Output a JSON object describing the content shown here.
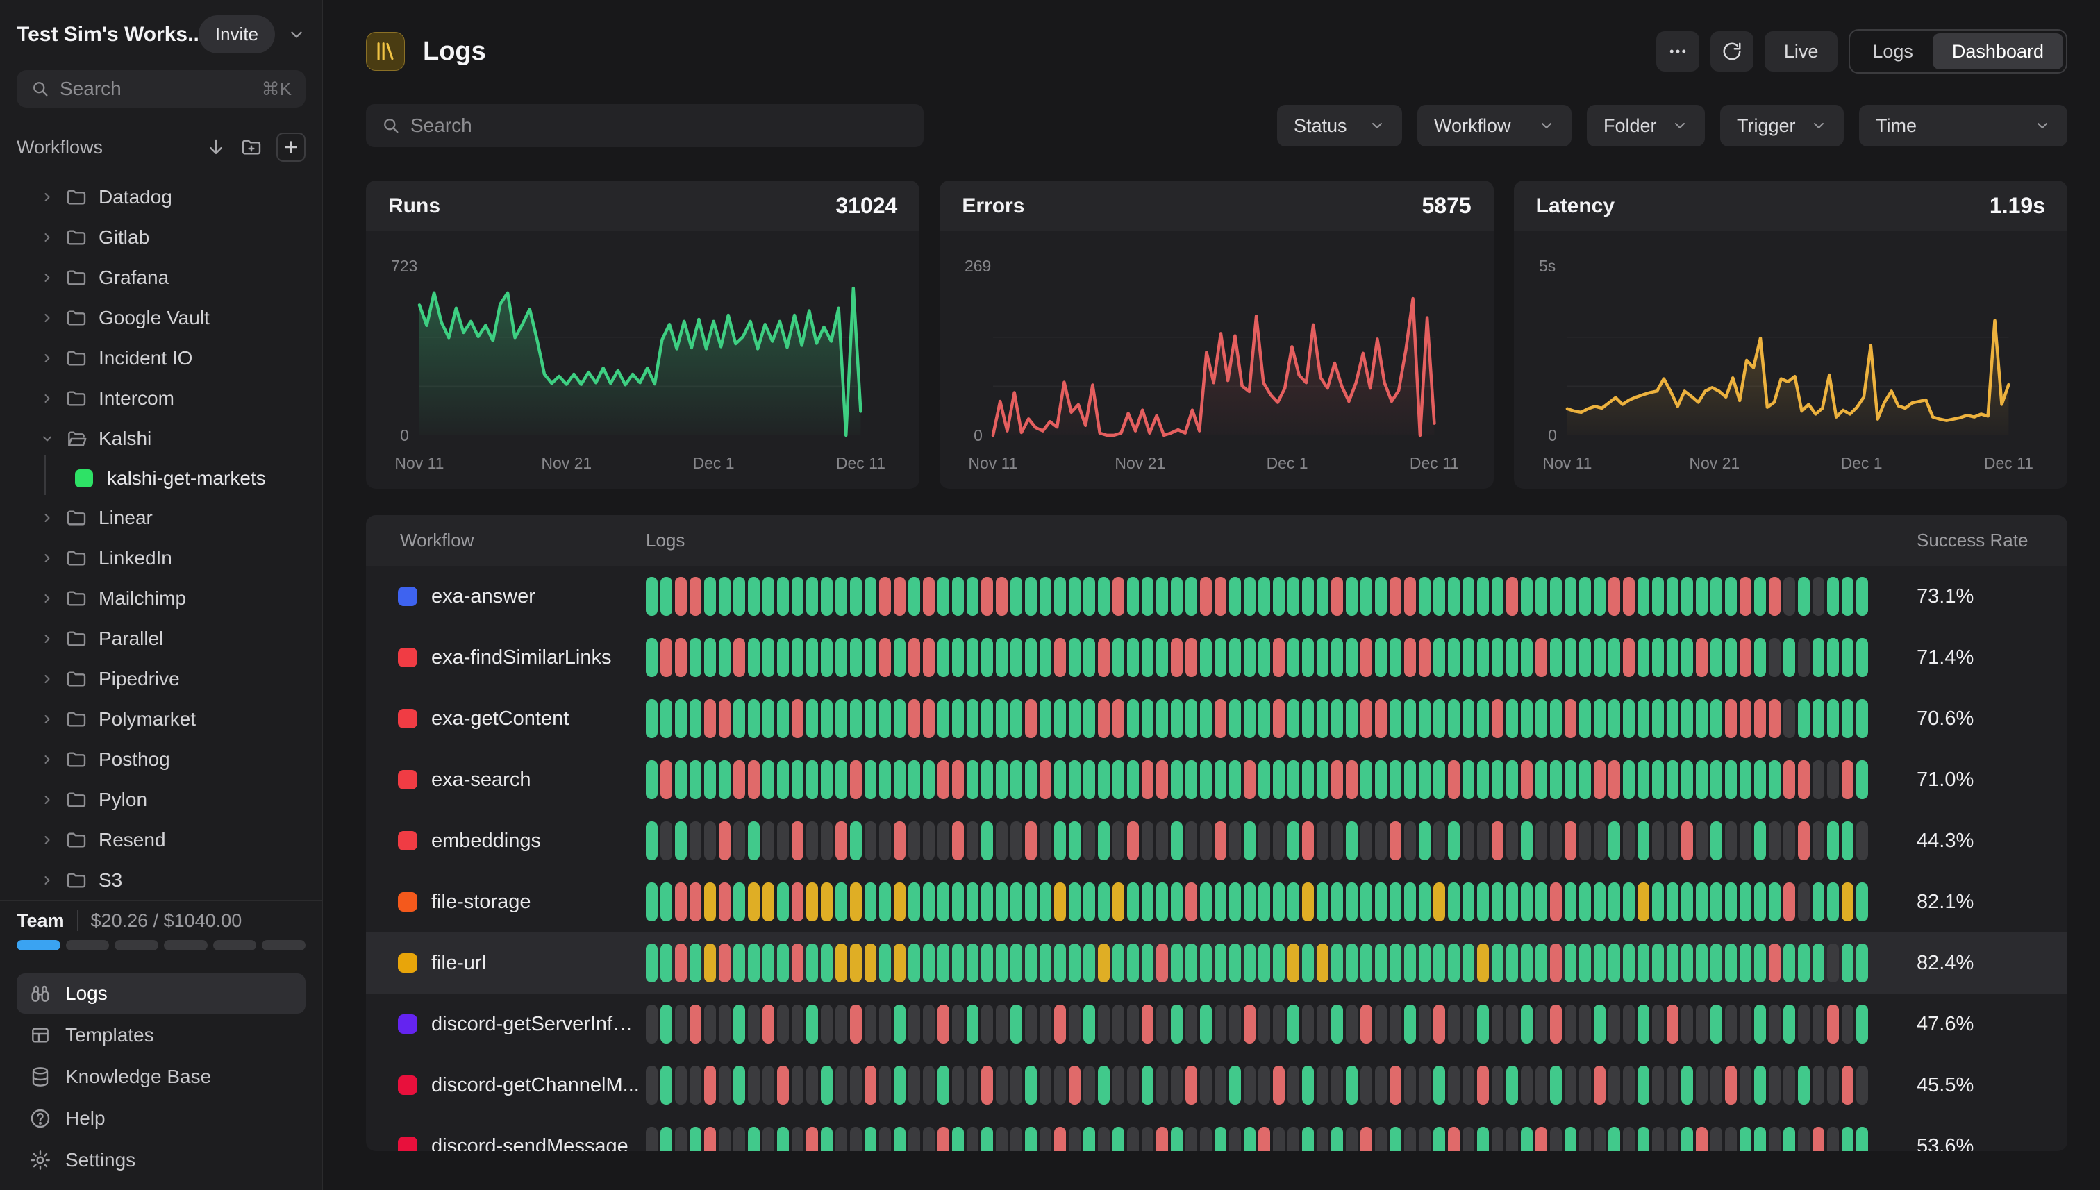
{
  "sidebar": {
    "workspace": {
      "name": "Test Sim's Works...",
      "invite_label": "Invite"
    },
    "search": {
      "placeholder": "Search",
      "shortcut": "⌘K"
    },
    "workflows_label": "Workflows",
    "folders": [
      {
        "label": "Datadog",
        "expanded": false
      },
      {
        "label": "Gitlab",
        "expanded": false
      },
      {
        "label": "Grafana",
        "expanded": false
      },
      {
        "label": "Google Vault",
        "expanded": false
      },
      {
        "label": "Incident IO",
        "expanded": false
      },
      {
        "label": "Intercom",
        "expanded": false
      },
      {
        "label": "Kalshi",
        "expanded": true,
        "children": [
          "kalshi-get-markets"
        ]
      },
      {
        "label": "Linear",
        "expanded": false
      },
      {
        "label": "LinkedIn",
        "expanded": false
      },
      {
        "label": "Mailchimp",
        "expanded": false
      },
      {
        "label": "Parallel",
        "expanded": false
      },
      {
        "label": "Pipedrive",
        "expanded": false
      },
      {
        "label": "Polymarket",
        "expanded": false
      },
      {
        "label": "Posthog",
        "expanded": false
      },
      {
        "label": "Pylon",
        "expanded": false
      },
      {
        "label": "Resend",
        "expanded": false
      },
      {
        "label": "S3",
        "expanded": false
      }
    ],
    "child_dot_color": "#2ee266",
    "team": {
      "label": "Team",
      "usage": "$20.26 / $1040.00",
      "segments_total": 6,
      "segments_filled": 1,
      "filled_color": "#3aa3f2"
    },
    "nav": [
      {
        "label": "Logs",
        "icon": "binoculars",
        "active": true
      },
      {
        "label": "Templates",
        "icon": "templates",
        "active": false
      },
      {
        "label": "Knowledge Base",
        "icon": "database",
        "active": false
      },
      {
        "label": "Help",
        "icon": "help",
        "active": false
      },
      {
        "label": "Settings",
        "icon": "gear",
        "active": false
      }
    ]
  },
  "header": {
    "title": "Logs",
    "live_label": "Live",
    "view_toggle": {
      "options": [
        "Logs",
        "Dashboard"
      ],
      "selected": "Dashboard"
    }
  },
  "controls": {
    "search_placeholder": "Search",
    "filters": [
      "Status",
      "Workflow",
      "Folder",
      "Trigger",
      "Time"
    ]
  },
  "chart_data": [
    {
      "type": "line",
      "title": "Runs",
      "value": "31024",
      "color": "#3ecf82",
      "fill_opacity": 0.32,
      "ymax_label": "723",
      "ymin_label": "0",
      "ylim": [
        0,
        723
      ],
      "x_labels": [
        "Nov 11",
        "Nov 21",
        "Dec 1",
        "Dec 11"
      ],
      "values": [
        640,
        540,
        700,
        555,
        480,
        625,
        505,
        560,
        485,
        540,
        465,
        645,
        700,
        480,
        545,
        620,
        470,
        300,
        255,
        290,
        250,
        300,
        250,
        310,
        258,
        330,
        255,
        318,
        248,
        300,
        258,
        330,
        252,
        470,
        545,
        425,
        560,
        430,
        570,
        425,
        560,
        435,
        590,
        450,
        485,
        560,
        425,
        545,
        462,
        560,
        432,
        590,
        442,
        612,
        452,
        532,
        462,
        625,
        0,
        723,
        118
      ]
    },
    {
      "type": "line",
      "title": "Errors",
      "value": "5875",
      "color": "#e55f5f",
      "fill_opacity": 0.22,
      "ymax_label": "269",
      "ymin_label": "0",
      "ylim": [
        0,
        269
      ],
      "x_labels": [
        "Nov 11",
        "Nov 21",
        "Dec 1",
        "Dec 11"
      ],
      "values": [
        0,
        62,
        8,
        78,
        5,
        30,
        14,
        8,
        25,
        15,
        97,
        42,
        56,
        18,
        92,
        4,
        0,
        0,
        4,
        40,
        8,
        46,
        4,
        36,
        0,
        4,
        10,
        4,
        46,
        8,
        152,
        96,
        186,
        100,
        182,
        90,
        80,
        218,
        96,
        74,
        60,
        86,
        162,
        110,
        96,
        202,
        106,
        86,
        132,
        90,
        62,
        96,
        150,
        86,
        176,
        96,
        62,
        82,
        156,
        250,
        0,
        215,
        22
      ]
    },
    {
      "type": "line",
      "title": "Latency",
      "value": "1.19s",
      "color": "#edb23e",
      "fill_opacity": 0.25,
      "ymax_label": "5s",
      "ymin_label": "0",
      "ylim": [
        0,
        5
      ],
      "x_labels": [
        "Nov 11",
        "Nov 21",
        "Dec 1",
        "Dec 11"
      ],
      "values": [
        0.9,
        0.82,
        0.78,
        0.9,
        0.98,
        0.92,
        1.1,
        1.28,
        1.05,
        1.2,
        1.3,
        1.38,
        1.45,
        1.5,
        1.92,
        1.48,
        0.98,
        1.5,
        1.32,
        1.12,
        1.5,
        1.62,
        1.5,
        1.3,
        1.95,
        1.18,
        2.55,
        2.3,
        3.3,
        0.95,
        1.12,
        1.92,
        1.82,
        2.0,
        0.82,
        1.05,
        0.72,
        0.92,
        2.05,
        0.62,
        0.85,
        0.72,
        0.95,
        1.3,
        3.05,
        0.55,
        1.12,
        1.5,
        1.0,
        0.92,
        1.1,
        1.15,
        1.2,
        0.62,
        0.55,
        0.5,
        0.55,
        0.6,
        0.68,
        0.62,
        0.72,
        0.65,
        3.9,
        1.05,
        1.72
      ]
    }
  ],
  "table": {
    "columns": [
      "Workflow",
      "Logs",
      "Success Rate"
    ],
    "bar_colors": {
      "g": "#41c98b",
      "r": "#e06a6a",
      "y": "#dfae25",
      "x": "#3b3b3e"
    },
    "rows": [
      {
        "name": "exa-answer",
        "dot_color": "#3e63f0",
        "rate": "73.1%",
        "highlighted": false,
        "pattern": "ggrrggggggggggggrrgrgggrrgggggggrgggggrrgggggggrgggrrggggggrggggggrrgggggggrgrxgxggg"
      },
      {
        "name": "exa-findSimilarLinks",
        "dot_color": "#f03c44",
        "rate": "71.4%",
        "highlighted": false,
        "pattern": "grrgggrgggggggggrgrrggggggggrggrggggrrgggggrgggggrggrrgggggggrgggggrggggrggrgxgxgggg"
      },
      {
        "name": "exa-getContent",
        "dot_color": "#f03c44",
        "rate": "70.6%",
        "highlighted": false,
        "pattern": "ggggrrggggrgggggggrrggggggrggggrrggggggrgggrgggggrrgggggggrggggrggggggggggrrrrxggggg"
      },
      {
        "name": "exa-search",
        "dot_color": "#f03c44",
        "rate": "71.0%",
        "highlighted": false,
        "pattern": "grggggrrggggggrgggggrrgggggrggggggrrgggggrgggggrrggggggrggggrggggrrgggggggggggrrxxrg"
      },
      {
        "name": "embeddings",
        "dot_color": "#f03c44",
        "rate": "44.3%",
        "highlighted": false,
        "pattern": "gxgxxrxgxxrxxrgxxrxxxrxgxxrxggxgxrxxgxxrxgxxgrxxgxxrxgxgxxrxgxxrxxgxgxxrxgxxgxxrxggx"
      },
      {
        "name": "file-storage",
        "dot_color": "#f4591c",
        "rate": "82.1%",
        "highlighted": false,
        "pattern": "ggrryrgyygryygyggyggggggggggygggyggggrgggggggyggggggggygggggggrgggggygggggggggrxggyg"
      },
      {
        "name": "file-url",
        "dot_color": "#e8a50a",
        "rate": "82.4%",
        "highlighted": true,
        "pattern": "ggrgyrggggrggyyygygggggggggggggygggrggggggggygyggggggggggyggggrggggggggggggggrgggxgg"
      },
      {
        "name": "discord-getServerInfo...",
        "dot_color": "#6424f0",
        "rate": "47.6%",
        "highlighted": false,
        "pattern": "xgxrxxgxrxxgxxrxxgxxrxgxxgxxrxgxxxrxgxgxxrxxgxxgxrxxgxrxxgxxgxrxxgxxgxrxxgxxgxgxxrxg"
      },
      {
        "name": "discord-getChannelM...",
        "dot_color": "#e8103c",
        "rate": "45.5%",
        "highlighted": false,
        "pattern": "xgxxrxgxxrxxgxxrxgxxgxxrxxgxxrxgxxgxxrxxgxxrxgxxgxxrxxgxxrxgxxgxxrxxgxxgxxrxgxxgxxrx"
      },
      {
        "name": "discord-sendMessage",
        "dot_color": "#e8103c",
        "rate": "53.6%",
        "highlighted": false,
        "pattern": "xgxgrxxgxgxrgxxgxgxxrgxgxxgxrxgxgxxrgxxgxgrxxgxgxrxgxxgrxgxxgrxgxxgxgxxgrxxggxgxrxgg"
      }
    ]
  }
}
